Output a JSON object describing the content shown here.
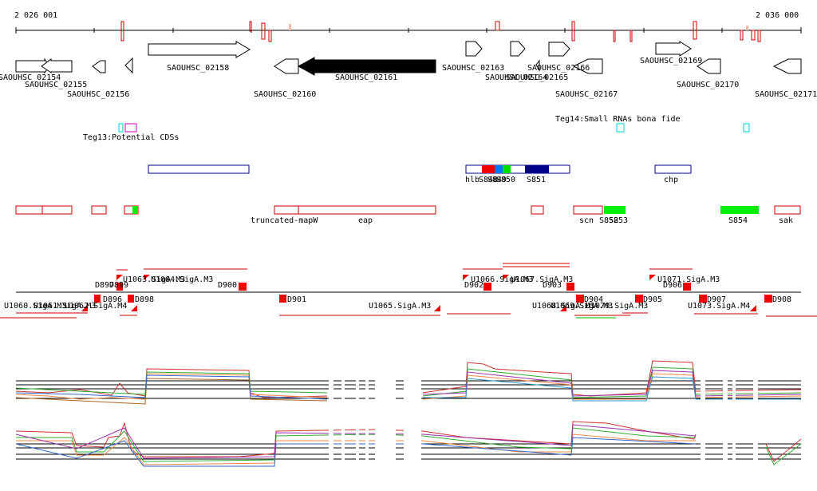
{
  "coordinates": {
    "start_label": "2 026 001",
    "end_label": "2 036 000"
  },
  "genes": [
    {
      "label": "SAOUHSC_02154",
      "strand": "+",
      "fill": "white"
    },
    {
      "label": "SAOUHSC_02155",
      "strand": "-",
      "fill": "white"
    },
    {
      "label": "SAOUHSC_02156",
      "strand": "-",
      "fill": "white"
    },
    {
      "label": "",
      "strand": "-",
      "fill": "white"
    },
    {
      "label": "SAOUHSC_02158",
      "strand": "+",
      "fill": "white"
    },
    {
      "label": "SAOUHSC_02160",
      "strand": "-",
      "fill": "white"
    },
    {
      "label": "SAOUHSC_02161",
      "strand": "-",
      "fill": "black"
    },
    {
      "label": "SAOUHSC_02163",
      "strand": "+",
      "fill": "white"
    },
    {
      "label": "SAOUHSC_02164",
      "strand": "+",
      "fill": "white"
    },
    {
      "label": "SAOUHSC_02165",
      "strand": "+",
      "fill": "white"
    },
    {
      "label": "SAOUHSC_02166",
      "strand": "-",
      "fill": "white"
    },
    {
      "label": "SAOUHSC_02167",
      "strand": "-",
      "fill": "white"
    },
    {
      "label": "SAOUHSC_02169",
      "strand": "+",
      "fill": "white"
    },
    {
      "label": "SAOUHSC_02170",
      "strand": "-",
      "fill": "white"
    },
    {
      "label": "SAOUHSC_02171",
      "strand": "-",
      "fill": "white"
    }
  ],
  "tracks": {
    "teg13": "Teg13:Potential CDSs",
    "teg14": "Teg14:Small RNAs bona fide"
  },
  "blue_features": [
    "hlb",
    "S848",
    "S849",
    "S850",
    "S851",
    "chp"
  ],
  "red_features": [
    "truncated-mapW",
    "eap",
    "scn",
    "S852",
    "S853",
    "S854",
    "sak"
  ],
  "transcripts": [
    "U1060.SigA.M3",
    "U1061.SigA.M3",
    "U1062.SigA.M4",
    "U1063.SigA.M3",
    "U1064.SigA.M3",
    "U1065.SigA.M3",
    "U1066.SigA.M3",
    "U1067.SigA.M3",
    "U1068.SigA.M3",
    "U1069.SigA.M3",
    "U1070.SigA.M3",
    "U1071.SigA.M3",
    "U1073.SigA.M4",
    "D896",
    "D897",
    "D898",
    "D899",
    "D900",
    "D901",
    "D902",
    "D903",
    "D904",
    "D905",
    "D906",
    "D907",
    "D908"
  ],
  "colors": {
    "gene": "#000000",
    "feature_blue": "#00008b",
    "feature_red": "#cc0000",
    "green": "#00ee00",
    "cyan": "#00cccc",
    "magenta": "#cc00cc"
  }
}
